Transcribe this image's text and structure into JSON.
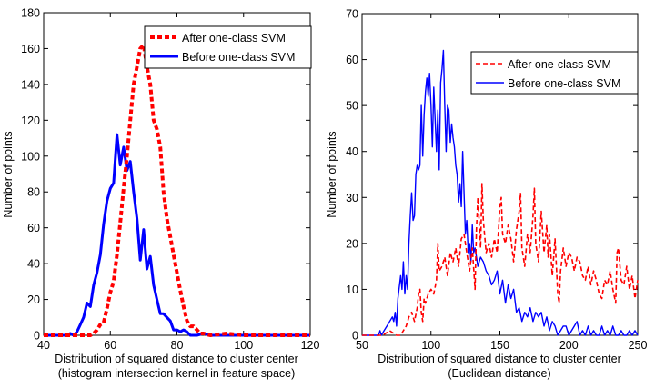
{
  "chart_data": [
    {
      "type": "line",
      "title": "",
      "xlabel": "Distribution of squared distance to cluster center",
      "xlabel2": "(histogram intersection kernel in feature space)",
      "ylabel": "Number of points",
      "xlim": [
        40,
        120
      ],
      "ylim": [
        0,
        180
      ],
      "xticks": [
        40,
        60,
        80,
        100,
        120
      ],
      "xtick_labels": [
        "40",
        "60",
        "80",
        "100",
        "120"
      ],
      "yticks": [
        0,
        20,
        40,
        60,
        80,
        100,
        120,
        140,
        160,
        180
      ],
      "ytick_labels": [
        "0",
        "20",
        "40",
        "60",
        "80",
        "100",
        "120",
        "140",
        "160",
        "180"
      ],
      "grid": false,
      "legend_position": "top-right",
      "series": [
        {
          "name": "After one-class SVM",
          "style": "dotted-thick",
          "color": "#ff0000",
          "x": [
            40,
            50,
            54,
            55,
            56,
            57,
            58,
            59,
            60,
            61,
            62,
            63,
            64,
            65,
            66,
            67,
            68,
            69,
            70,
            71,
            72,
            73,
            74,
            75,
            76,
            77,
            78,
            79,
            80,
            81,
            82,
            83,
            84,
            85,
            86,
            87,
            88,
            90,
            95,
            100,
            110,
            120
          ],
          "y": [
            0,
            0,
            0,
            1,
            3,
            6,
            7,
            15,
            24,
            30,
            45,
            63,
            82,
            100,
            120,
            140,
            150,
            160,
            162,
            150,
            140,
            120,
            115,
            105,
            80,
            65,
            55,
            45,
            35,
            25,
            16,
            8,
            5,
            5,
            3,
            1,
            1,
            0,
            1,
            0,
            0,
            0
          ]
        },
        {
          "name": "Before one-class SVM",
          "style": "solid-thick",
          "color": "#0000ff",
          "x": [
            40,
            47,
            48,
            49,
            50,
            51,
            52,
            53,
            54,
            55,
            56,
            57,
            58,
            59,
            60,
            61,
            62,
            63,
            64,
            65,
            66,
            67,
            68,
            69,
            70,
            71,
            72,
            73,
            74,
            75,
            76,
            77,
            78,
            79,
            80,
            81,
            82,
            83,
            84,
            85,
            86,
            88,
            90,
            95,
            100,
            120
          ],
          "y": [
            0,
            0,
            1,
            0,
            2,
            6,
            10,
            18,
            16,
            28,
            35,
            45,
            62,
            75,
            82,
            85,
            112,
            95,
            105,
            92,
            97,
            80,
            65,
            42,
            59,
            37,
            44,
            28,
            20,
            12,
            12,
            10,
            8,
            3,
            3,
            2,
            3,
            2,
            0,
            0,
            0,
            1,
            0,
            0,
            0,
            0
          ]
        }
      ]
    },
    {
      "type": "line",
      "title": "",
      "xlabel": "Distribution of squared distance to cluster center",
      "xlabel2": "(Euclidean distance)",
      "ylabel": "Number of points",
      "xlim": [
        50,
        250
      ],
      "ylim": [
        0,
        70
      ],
      "xticks": [
        50,
        100,
        150,
        200,
        250
      ],
      "xtick_labels": [
        "50",
        "100",
        "150",
        "200",
        "250"
      ],
      "yticks": [
        0,
        10,
        20,
        30,
        40,
        50,
        60,
        70
      ],
      "ytick_labels": [
        "0",
        "10",
        "20",
        "30",
        "40",
        "50",
        "60",
        "70"
      ],
      "grid": false,
      "legend_position": "top-right",
      "series": [
        {
          "name": "After one-class SVM",
          "style": "dashed",
          "color": "#ff0000",
          "x": [
            50,
            65,
            70,
            75,
            78,
            80,
            82,
            84,
            86,
            88,
            90,
            91,
            92,
            93,
            94,
            95,
            96,
            98,
            100,
            102,
            104,
            105,
            106,
            108,
            110,
            112,
            114,
            116,
            118,
            120,
            122,
            124,
            126,
            128,
            130,
            132,
            133,
            134,
            136,
            137,
            138,
            140,
            142,
            144,
            146,
            148,
            150,
            151,
            152,
            154,
            156,
            158,
            160,
            162,
            164,
            165,
            166,
            168,
            170,
            172,
            174,
            175,
            176,
            178,
            180,
            182,
            184,
            185,
            186,
            188,
            190,
            192,
            193,
            194,
            196,
            198,
            200,
            202,
            204,
            206,
            208,
            210,
            212,
            214,
            216,
            218,
            220,
            222,
            224,
            226,
            228,
            230,
            232,
            234,
            235,
            236,
            238,
            240,
            242,
            244,
            246,
            248,
            250
          ],
          "y": [
            0,
            0,
            1,
            0,
            0,
            1,
            2,
            4,
            5,
            3,
            6,
            9,
            10,
            5,
            3,
            8,
            7,
            9,
            10,
            9,
            12,
            20,
            14,
            15,
            17,
            13,
            18,
            16,
            19,
            15,
            21,
            22,
            18,
            14,
            19,
            10,
            23,
            30,
            19,
            33,
            25,
            18,
            20,
            17,
            21,
            18,
            28,
            30,
            22,
            20,
            24,
            21,
            16,
            23,
            27,
            31,
            19,
            15,
            22,
            18,
            26,
            32,
            20,
            16,
            27,
            18,
            24,
            17,
            22,
            13,
            21,
            9,
            7,
            14,
            19,
            15,
            18,
            17,
            14,
            17,
            16,
            13,
            12,
            15,
            11,
            14,
            12,
            9,
            8,
            12,
            11,
            14,
            10,
            7,
            18,
            19,
            12,
            11,
            15,
            10,
            13,
            8,
            12
          ]
        },
        {
          "name": "Before one-class SVM",
          "style": "solid",
          "color": "#0000ff",
          "x": [
            50,
            62,
            63,
            64,
            66,
            68,
            70,
            72,
            73,
            74,
            75,
            76,
            78,
            79,
            80,
            81,
            82,
            83,
            84,
            85,
            86,
            87,
            88,
            89,
            90,
            91,
            92,
            93,
            94,
            95,
            96,
            97,
            98,
            99,
            100,
            101,
            102,
            103,
            104,
            105,
            106,
            107,
            108,
            109,
            110,
            111,
            112,
            113,
            114,
            115,
            116,
            117,
            118,
            119,
            120,
            121,
            122,
            123,
            124,
            125,
            126,
            127,
            128,
            129,
            130,
            131,
            132,
            134,
            136,
            138,
            140,
            142,
            144,
            146,
            148,
            150,
            152,
            154,
            156,
            158,
            160,
            162,
            164,
            166,
            168,
            170,
            172,
            174,
            176,
            178,
            180,
            182,
            184,
            186,
            188,
            190,
            192,
            194,
            196,
            198,
            200,
            202,
            204,
            206,
            208,
            210,
            212,
            214,
            216,
            218,
            220,
            222,
            224,
            226,
            228,
            230,
            232,
            234,
            236,
            238,
            240,
            242,
            244,
            246,
            248,
            250
          ],
          "y": [
            0,
            0,
            1,
            0,
            1,
            2,
            3,
            4,
            3,
            5,
            2,
            8,
            13,
            10,
            16,
            9,
            13,
            10,
            20,
            26,
            31,
            25,
            26,
            35,
            37,
            36,
            37,
            50,
            39,
            48,
            53,
            56,
            52,
            57,
            50,
            41,
            54,
            47,
            40,
            49,
            36,
            55,
            58,
            62,
            50,
            40,
            50,
            49,
            42,
            46,
            43,
            41,
            37,
            35,
            29,
            33,
            28,
            40,
            31,
            22,
            25,
            18,
            20,
            16,
            24,
            18,
            19,
            15,
            17,
            16,
            14,
            13,
            11,
            12,
            14,
            9,
            12,
            7,
            11,
            8,
            10,
            5,
            6,
            3,
            5,
            4,
            6,
            3,
            5,
            4,
            5,
            2,
            4,
            1,
            3,
            2,
            0,
            1,
            2,
            2,
            0,
            1,
            2,
            3,
            0,
            1,
            0,
            2,
            0,
            1,
            0,
            0,
            2,
            0,
            1,
            0,
            2,
            0,
            0,
            1,
            0,
            0,
            1,
            0,
            1,
            0
          ]
        }
      ]
    }
  ]
}
